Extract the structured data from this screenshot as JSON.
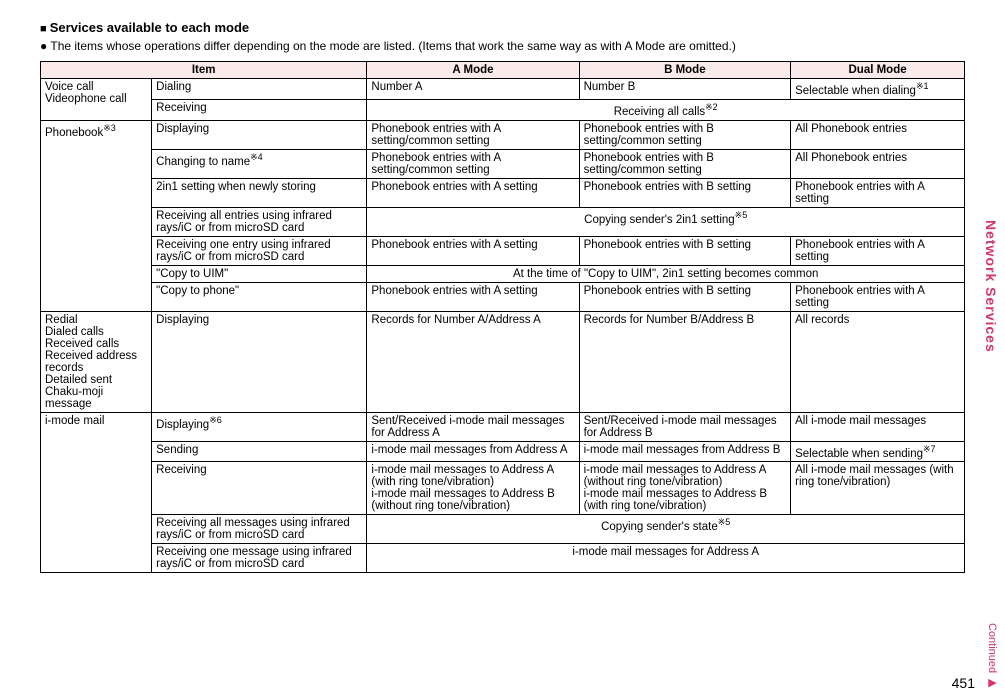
{
  "heading": "Services available to each mode",
  "sublead": "The items whose operations differ depending on the mode are listed. (Items that work the same way as with A Mode are omitted.)",
  "sidetab": "Network Services",
  "continued": "Continued ▶",
  "pagenum": "451",
  "th": {
    "item": "Item",
    "a": "A Mode",
    "b": "B Mode",
    "d": "Dual Mode"
  },
  "row": {
    "voiceVideo": "Voice call\nVideophone call",
    "dialing": "Dialing",
    "numA": "Number A",
    "numB": "Number B",
    "selDial": "Selectable when dialing",
    "ref1": "※1",
    "receiving": "Receiving",
    "recvAll": "Receiving all calls",
    "ref2": "※2",
    "phonebook": "Phonebook",
    "ref3": "※3",
    "displaying": "Displaying",
    "pbAset": "Phonebook entries with A setting/common setting",
    "pbBset": "Phonebook entries with B setting/common setting",
    "allPb": "All Phonebook entries",
    "changeName": "Changing to name",
    "ref4": "※4",
    "newStore": "2in1 setting when newly storing",
    "pbA": "Phonebook entries with A setting",
    "pbB": "Phonebook entries with B setting",
    "recvAllEntries": "Receiving all entries using infrared rays/iC or from microSD card",
    "copy2in1": "Copying sender's 2in1 setting",
    "ref5": "※5",
    "recvOneEntry": "Receiving one entry using infrared rays/iC or from microSD card",
    "copyUim": "\"Copy to UIM\"",
    "copyUimVal": "At the time of \"Copy to UIM\", 2in1 setting becomes common",
    "copyPhone": "\"Copy to phone\"",
    "redialGroup": "Redial\nDialed calls\nReceived calls\nReceived address records\nDetailed sent\nChaku-moji message",
    "recA": "Records for Number A/Address A",
    "recB": "Records for Number B/Address B",
    "allRec": "All records",
    "imode": "i-mode mail",
    "ref6": "※6",
    "sentA": "Sent/Received i-mode mail messages for Address A",
    "sentB": "Sent/Received i-mode mail messages for Address B",
    "allMail": "All i-mode mail messages",
    "sending": "Sending",
    "fromA": "i-mode mail messages from Address A",
    "fromB": "i-mode mail messages from Address B",
    "selSend": "Selectable when sending",
    "ref7": "※7",
    "toAwith": "i-mode mail messages to Address A (with ring tone/vibration)\ni-mode mail messages to Address B (without ring tone/vibration)",
    "toAwithout": "i-mode mail messages to Address A (without ring tone/vibration)\ni-mode mail messages to Address B (with ring tone/vibration)",
    "allWith": "All i-mode mail messages (with ring tone/vibration)",
    "recvAllMsg": "Receiving all messages using infrared rays/iC or from microSD card",
    "copyState": "Copying sender's state",
    "recvOneMsg": "Receiving one message using infrared rays/iC or from microSD card",
    "msgForA": "i-mode mail messages for Address A"
  }
}
